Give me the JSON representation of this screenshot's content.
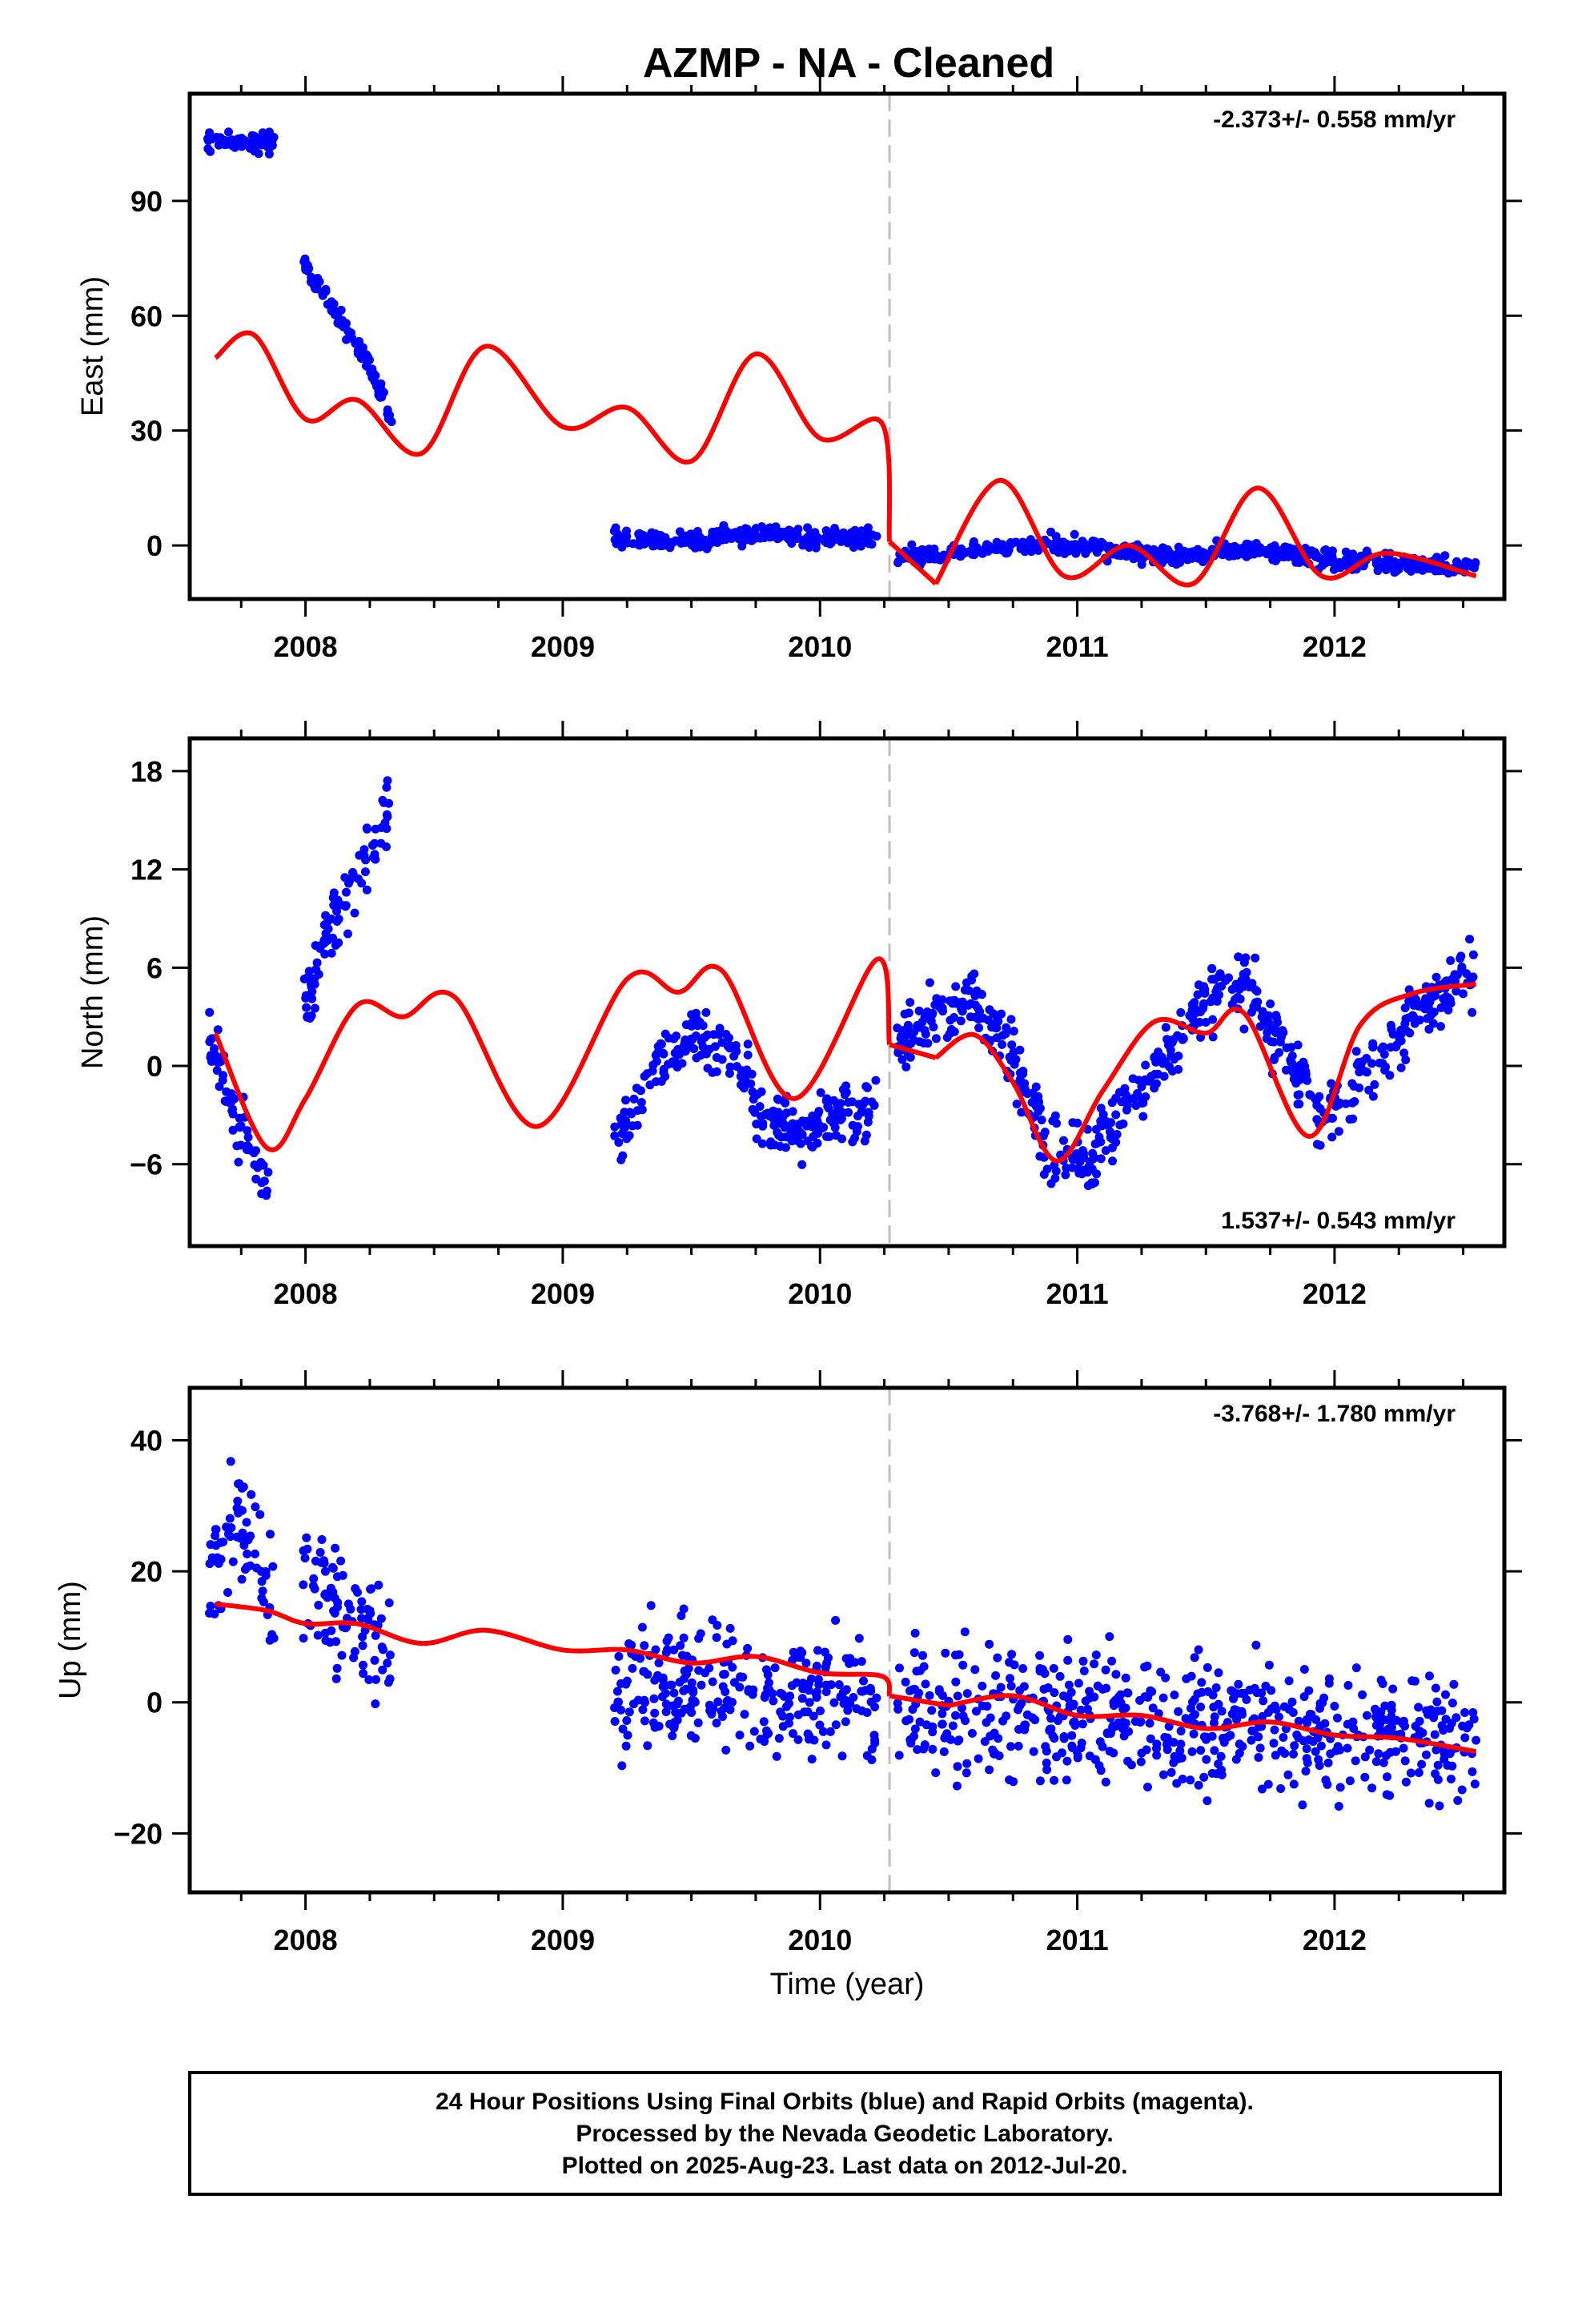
{
  "title": "AZMP  - NA - Cleaned",
  "x_axis": {
    "label": "Time (year)",
    "ticks": [
      2008,
      2009,
      2010,
      2011,
      2012
    ],
    "range": [
      2007.55,
      2012.66
    ]
  },
  "break_epoch": 2010.27,
  "colors": {
    "final_orbits": "#0000ff",
    "model": "#ff0000",
    "break_line": "#c0c0c0"
  },
  "footer": {
    "line1": "24 Hour Positions Using Final Orbits (blue) and Rapid Orbits (magenta).",
    "line2": "Processed by the Nevada Geodetic Laboratory.",
    "line3": "Plotted on 2025-Aug-23. Last data on 2012-Jul-20."
  },
  "chart_data": [
    {
      "type": "scatter",
      "ylabel": "East (mm)",
      "ylim": [
        -14,
        118
      ],
      "yticks": [
        0,
        30,
        60,
        90
      ],
      "rate_label": "-2.373+/- 0.558 mm/yr",
      "rate_position": "top-right",
      "data_segments": [
        {
          "x": [
            2007.62,
            2007.72,
            2007.82,
            2007.88
          ],
          "y": [
            106,
            105,
            105,
            105
          ]
        },
        {
          "x": [
            2007.99,
            2008.06,
            2008.13,
            2008.2,
            2008.27,
            2008.34
          ],
          "y": [
            74,
            67,
            60,
            52,
            44,
            31
          ]
        },
        {
          "x": [
            2009.2,
            2009.4,
            2009.6,
            2009.8,
            2010.0,
            2010.22
          ],
          "y": [
            2,
            1,
            2,
            3,
            2,
            2
          ]
        },
        {
          "x": [
            2010.3,
            2010.5,
            2010.7,
            2010.9,
            2011.1,
            2011.3,
            2011.5,
            2011.7,
            2011.9,
            2012.1,
            2012.3,
            2012.55
          ],
          "y": [
            -3,
            -2,
            0,
            0,
            -1,
            -3,
            -2,
            -1,
            -3,
            -4,
            -5,
            -6
          ]
        }
      ],
      "model": {
        "x": [
          2007.65,
          2007.8,
          2008.0,
          2008.2,
          2008.45,
          2008.7,
          2009.0,
          2009.25,
          2009.5,
          2009.75,
          2010.0,
          2010.24,
          2010.27,
          2010.45,
          2010.7,
          2010.95,
          2011.2,
          2011.45,
          2011.7,
          2011.95,
          2012.2,
          2012.55
        ],
        "y": [
          49,
          55,
          33,
          38,
          24,
          52,
          31,
          36,
          22,
          50,
          28,
          32,
          1,
          -10,
          17,
          -8,
          0,
          -10,
          15,
          -8,
          -2,
          -8
        ]
      }
    },
    {
      "type": "scatter",
      "ylabel": "North (mm)",
      "ylim": [
        -11,
        20
      ],
      "yticks": [
        -6,
        0,
        6,
        12,
        18
      ],
      "rate_label": "1.537+/- 0.543 mm/yr",
      "rate_position": "bottom-right",
      "data_segments": [
        {
          "x": [
            2007.62,
            2007.7,
            2007.78,
            2007.86
          ],
          "y": [
            1,
            -2,
            -5,
            -8
          ]
        },
        {
          "x": [
            2007.99,
            2008.08,
            2008.18,
            2008.26,
            2008.33
          ],
          "y": [
            3,
            8,
            11,
            13,
            16
          ]
        },
        {
          "x": [
            2009.2,
            2009.35,
            2009.5,
            2009.65,
            2009.8,
            2009.95,
            2010.1,
            2010.22
          ],
          "y": [
            -5,
            0,
            2,
            1,
            -3,
            -4,
            -3,
            -2
          ]
        },
        {
          "x": [
            2010.3,
            2010.45,
            2010.6,
            2010.75,
            2010.9,
            2011.05,
            2011.2,
            2011.35,
            2011.5,
            2011.65,
            2011.8,
            2011.95,
            2012.1,
            2012.3,
            2012.55
          ],
          "y": [
            1,
            3,
            4,
            0,
            -5,
            -6,
            -2,
            1,
            4,
            5,
            1,
            -3,
            -1,
            3,
            6
          ]
        }
      ],
      "model": {
        "x": [
          2007.65,
          2007.85,
          2008.0,
          2008.2,
          2008.38,
          2008.58,
          2008.9,
          2009.25,
          2009.45,
          2009.62,
          2009.9,
          2010.22,
          2010.27,
          2010.45,
          2010.6,
          2010.75,
          2010.92,
          2011.1,
          2011.3,
          2011.5,
          2011.65,
          2011.9,
          2012.1,
          2012.3,
          2012.55
        ],
        "y": [
          2,
          -5,
          -2,
          3.7,
          3,
          4.2,
          -3.7,
          5.3,
          4.5,
          5.8,
          -2,
          6.5,
          1.3,
          0.5,
          1.9,
          -1,
          -5.8,
          -1.5,
          2.7,
          2,
          3.2,
          -4.3,
          2.5,
          4.4,
          5
        ]
      }
    },
    {
      "type": "scatter",
      "ylabel": "Up (mm)",
      "ylim": [
        -29,
        48
      ],
      "yticks": [
        -20,
        0,
        20,
        40
      ],
      "rate_label": "-3.768+/- 1.780 mm/yr",
      "rate_position": "top-right",
      "data_segments": [
        {
          "x": [
            2007.62,
            2007.72,
            2007.82,
            2007.88
          ],
          "y": [
            20,
            28,
            22,
            15
          ]
        },
        {
          "x": [
            2007.99,
            2008.08,
            2008.18,
            2008.26,
            2008.33
          ],
          "y": [
            20,
            16,
            14,
            10,
            6
          ]
        },
        {
          "x": [
            2009.2,
            2009.4,
            2009.6,
            2009.8,
            2010.0,
            2010.22
          ],
          "y": [
            2,
            3,
            2,
            1,
            1,
            0
          ]
        },
        {
          "x": [
            2010.3,
            2010.5,
            2010.7,
            2010.9,
            2011.1,
            2011.3,
            2011.5,
            2011.7,
            2011.9,
            2012.1,
            2012.3,
            2012.55
          ],
          "y": [
            -1,
            -2,
            -1,
            -2,
            -2,
            -3,
            -4,
            -3,
            -4,
            -5,
            -5,
            -6
          ]
        }
      ],
      "model": {
        "x": [
          2007.65,
          2007.85,
          2008.0,
          2008.2,
          2008.45,
          2008.7,
          2009.0,
          2009.25,
          2009.5,
          2009.75,
          2010.0,
          2010.24,
          2010.27,
          2010.5,
          2010.75,
          2011.0,
          2011.25,
          2011.5,
          2011.75,
          2012.0,
          2012.25,
          2012.55
        ],
        "y": [
          15,
          14,
          12,
          12,
          9,
          11,
          8,
          8,
          6,
          7,
          4.5,
          4,
          1,
          -0.5,
          1,
          -2,
          -2,
          -4,
          -3,
          -5,
          -5.5,
          -7.5
        ]
      }
    }
  ]
}
